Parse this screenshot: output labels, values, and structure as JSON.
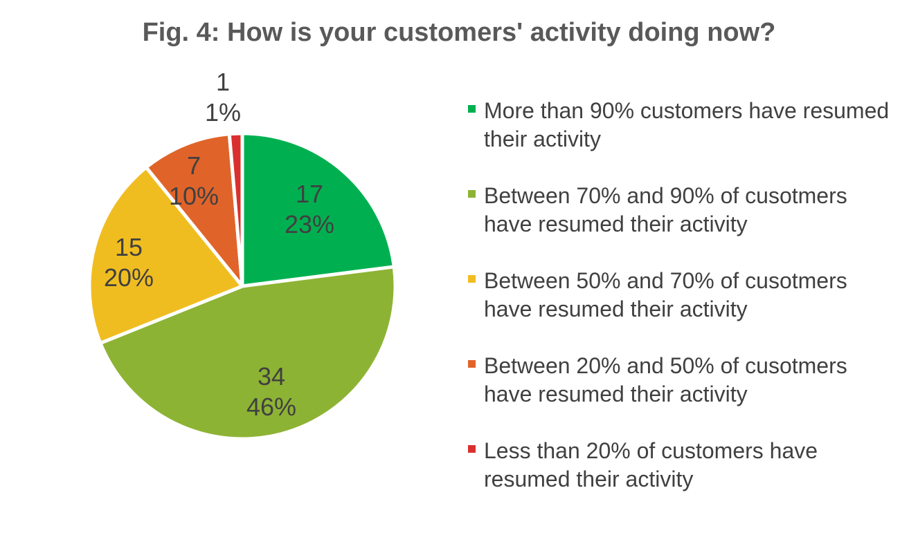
{
  "chart_data": {
    "type": "pie",
    "title": "Fig. 4: How is your customers' activity doing now?",
    "slices": [
      {
        "label": "More than 90% customers have resumed their activity",
        "value": 17,
        "percent": "23%",
        "color": "#00b050"
      },
      {
        "label": "Between 70% and 90% of cusotmers have resumed their activity",
        "value": 34,
        "percent": "46%",
        "color": "#8db334"
      },
      {
        "label": "Between 50% and 70% of cusotmers have resumed their activity",
        "value": 15,
        "percent": "20%",
        "color": "#f0bd21"
      },
      {
        "label": "Between 20% and 50% of cusotmers have resumed their activity",
        "value": 7,
        "percent": "10%",
        "color": "#e0642a"
      },
      {
        "label": "Less than 20% of customers have resumed their activity",
        "value": 1,
        "percent": "1%",
        "color": "#d9302f"
      }
    ],
    "legend_position": "right"
  }
}
